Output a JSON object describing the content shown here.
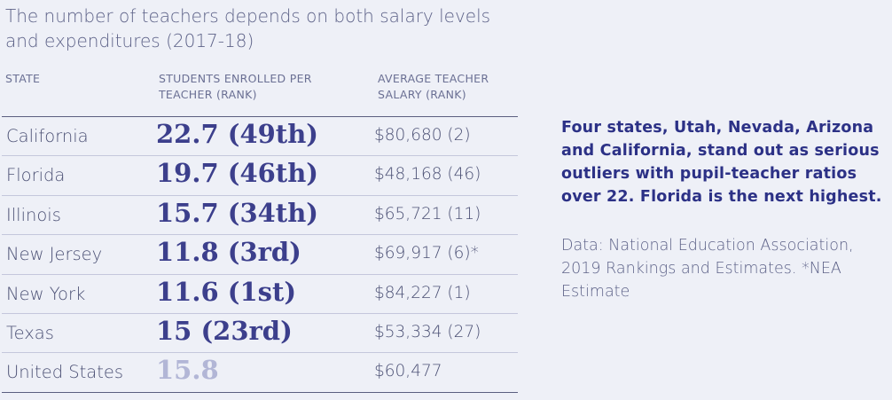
{
  "title": "The number of teachers depends on both salary levels and expenditures (2017-18)",
  "headers": {
    "state": "STATE",
    "ratio": "STUDENTS ENROLLED PER TEACHER (RANK)",
    "salary": "AVERAGE TEACHER SALARY (RANK)"
  },
  "note": "Four states, Utah, Nevada, Arizona and California, stand out as serious outliers with pupil-teacher ratios over 22. Florida is the next highest.",
  "source": "Data: National Education Association, 2019 Rankings and Estimates. *NEA Estimate",
  "colors": {
    "accent": "#3c3f8c",
    "muted": "#b2b6d6",
    "background": "#eef0f7"
  },
  "chart_data": {
    "type": "table",
    "columns": [
      "STATE",
      "STUDENTS ENROLLED PER TEACHER (RANK)",
      "AVERAGE TEACHER SALARY (RANK)"
    ],
    "rows": [
      {
        "state": "California",
        "ratio": "22.7 (49th)",
        "salary": "$80,680 (2)"
      },
      {
        "state": "Florida",
        "ratio": "19.7 (46th)",
        "salary": "$48,168 (46)"
      },
      {
        "state": "Illinois",
        "ratio": "15.7 (34th)",
        "salary": "$65,721 (11)"
      },
      {
        "state": "New Jersey",
        "ratio": "11.8 (3rd)",
        "salary": "$69,917 (6)*"
      },
      {
        "state": "New York",
        "ratio": "11.6 (1st)",
        "salary": "$84,227 (1)"
      },
      {
        "state": "Texas",
        "ratio": "15 (23rd)",
        "salary": "$53,334 (27)"
      },
      {
        "state": "United States",
        "ratio": "15.8",
        "salary": "$60,477",
        "muted": true
      }
    ]
  }
}
